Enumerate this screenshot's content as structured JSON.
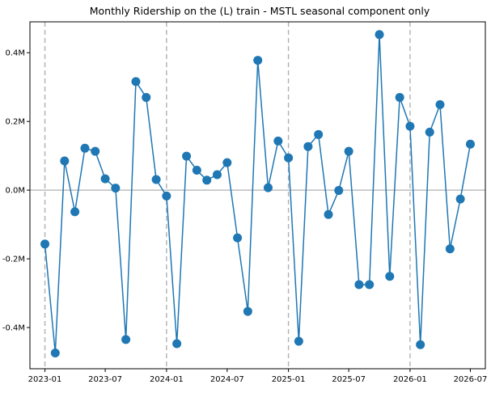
{
  "chart_data": {
    "type": "line",
    "title": "Monthly Ridership on the (L) train - MSTL seasonal component only",
    "xlabel": "",
    "ylabel": "",
    "xlim": [
      "2022-11-17",
      "2026-08-15"
    ],
    "ylim": [
      -0.52,
      0.49
    ],
    "x_ticks": [
      "2023-01",
      "2023-07",
      "2024-01",
      "2024-07",
      "2025-01",
      "2025-07",
      "2026-01",
      "2026-07"
    ],
    "y_ticks": [
      {
        "value": -0.4,
        "label": "-0.4M"
      },
      {
        "value": -0.2,
        "label": "-0.2M"
      },
      {
        "value": 0.0,
        "label": "0.0M"
      },
      {
        "value": 0.2,
        "label": "0.2M"
      },
      {
        "value": 0.4,
        "label": "0.4M"
      }
    ],
    "zero_line": 0.0,
    "year_markers": [
      "2023-01",
      "2024-01",
      "2025-01",
      "2026-01"
    ],
    "grid": false,
    "colors": {
      "series": "#1f77b4",
      "zero_line": "#b0b0b0",
      "year_marker": "#b0b0b0",
      "axis": "#000000"
    },
    "series": [
      {
        "x": [
          "2023-01",
          "2023-02",
          "2023-03",
          "2023-04",
          "2023-05",
          "2023-06",
          "2023-07",
          "2023-08",
          "2023-09",
          "2023-10",
          "2023-11",
          "2023-12",
          "2024-01",
          "2024-02",
          "2024-03",
          "2024-04",
          "2024-05",
          "2024-06",
          "2024-07",
          "2024-08",
          "2024-09",
          "2024-10",
          "2024-11",
          "2024-12",
          "2025-01",
          "2025-02",
          "2025-03",
          "2025-04",
          "2025-05",
          "2025-06",
          "2025-07",
          "2025-08",
          "2025-09",
          "2025-10",
          "2025-11",
          "2025-12",
          "2026-01",
          "2026-02",
          "2026-03",
          "2026-04",
          "2026-05",
          "2026-06",
          "2026-07"
        ],
        "y": [
          -0.157,
          -0.474,
          0.085,
          -0.063,
          0.122,
          0.113,
          0.033,
          0.006,
          -0.435,
          0.316,
          0.27,
          0.031,
          -0.017,
          -0.447,
          0.099,
          0.058,
          0.029,
          0.045,
          0.08,
          -0.139,
          -0.353,
          0.378,
          0.007,
          0.143,
          0.094,
          -0.44,
          0.127,
          0.162,
          -0.071,
          -0.001,
          0.113,
          -0.275,
          -0.275,
          0.453,
          -0.251,
          0.27,
          0.186,
          -0.45,
          0.169,
          0.249,
          -0.171,
          -0.026,
          0.134
        ]
      }
    ]
  }
}
